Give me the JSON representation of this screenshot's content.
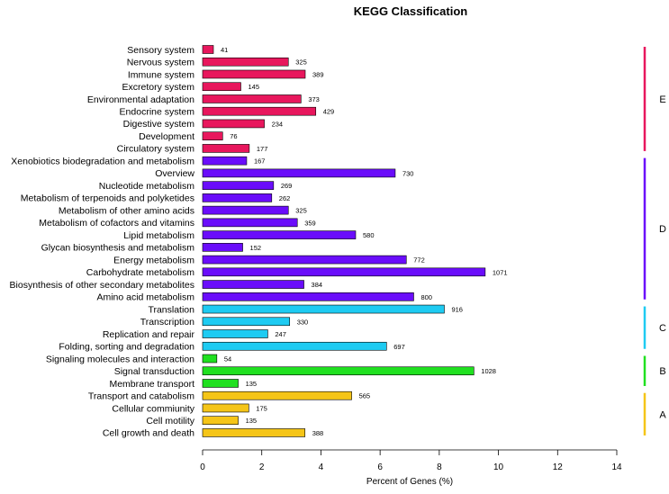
{
  "chart_data": {
    "type": "bar",
    "orientation": "horizontal",
    "title": "KEGG Classification",
    "xlabel": "Percent of Genes (%)",
    "ylabel": "",
    "xlim": [
      0,
      14
    ],
    "xticks": [
      0,
      2,
      4,
      6,
      8,
      10,
      12,
      14
    ],
    "categories": [
      "Sensory system",
      "Nervous system",
      "Immune system",
      "Excretory system",
      "Environmental adaptation",
      "Endocrine system",
      "Digestive system",
      "Development",
      "Circulatory system",
      "Xenobiotics biodegradation and metabolism",
      "Overview",
      "Nucleotide metabolism",
      "Metabolism of terpenoids and polyketides",
      "Metabolism of other amino acids",
      "Metabolism of cofactors and vitamins",
      "Lipid metabolism",
      "Glycan biosynthesis and metabolism",
      "Energy metabolism",
      "Carbohydrate metabolism",
      "Biosynthesis of other secondary metabolites",
      "Amino acid metabolism",
      "Translation",
      "Transcription",
      "Replication and repair",
      "Folding, sorting and degradation",
      "Signaling molecules and interaction",
      "Signal transduction",
      "Membrane transport",
      "Transport and catabolism",
      "Cellular commiunity",
      "Cell motility",
      "Cell growth and death"
    ],
    "counts": [
      41,
      325,
      389,
      145,
      373,
      429,
      234,
      76,
      177,
      167,
      730,
      269,
      262,
      325,
      359,
      580,
      152,
      772,
      1071,
      384,
      800,
      916,
      330,
      247,
      697,
      54,
      1028,
      135,
      565,
      175,
      135,
      388
    ],
    "percent_per_gene": 0.00892,
    "groups": [
      {
        "label": "E",
        "start": 0,
        "end": 8,
        "color": "#e8175d"
      },
      {
        "label": "D",
        "start": 9,
        "end": 20,
        "color": "#6a0dfa"
      },
      {
        "label": "C",
        "start": 21,
        "end": 24,
        "color": "#1ecbf2"
      },
      {
        "label": "B",
        "start": 25,
        "end": 27,
        "color": "#20e020"
      },
      {
        "label": "A",
        "start": 28,
        "end": 31,
        "color": "#f5c518"
      }
    ]
  }
}
